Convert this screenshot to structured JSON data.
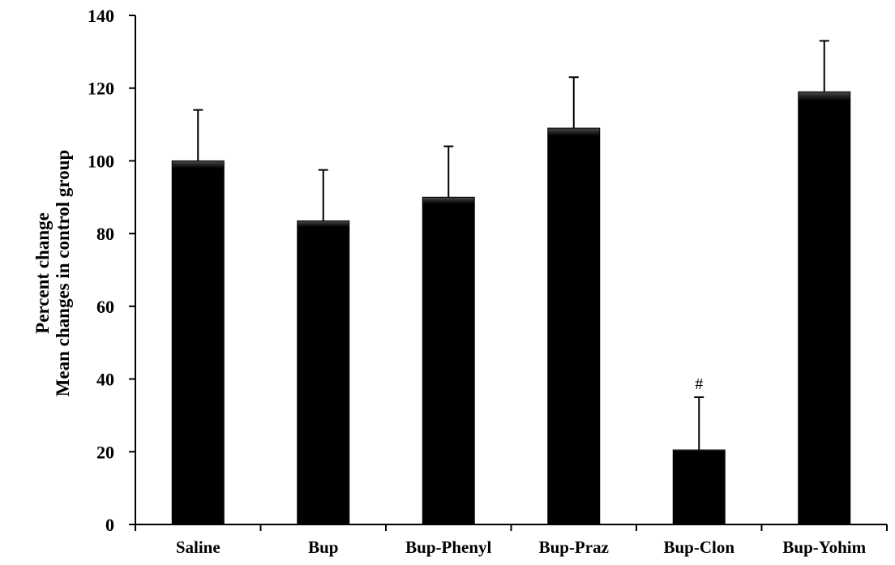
{
  "chart_data": {
    "type": "bar",
    "categories": [
      "Saline",
      "Bup",
      "Bup-Phenyl",
      "Bup-Praz",
      "Bup-Clon",
      "Bup-Yohim"
    ],
    "values": [
      100,
      83.5,
      90,
      109,
      20.5,
      119
    ],
    "error_bars_upper": [
      14,
      14,
      14,
      14,
      14.5,
      14
    ],
    "ylabel_lines": [
      "Percent change",
      "Mean changes in control group"
    ],
    "xlabel": "",
    "title": "",
    "ylim": [
      0,
      140
    ],
    "yticks": [
      0,
      20,
      40,
      60,
      80,
      100,
      120,
      140
    ],
    "grid": false,
    "legend": "none",
    "annotations": [
      {
        "category": "Bup-Clon",
        "text": "#"
      }
    ],
    "colors": {
      "bar": "#000000",
      "bar_highlight": "#4a4a4a",
      "axis": "#000000"
    }
  }
}
